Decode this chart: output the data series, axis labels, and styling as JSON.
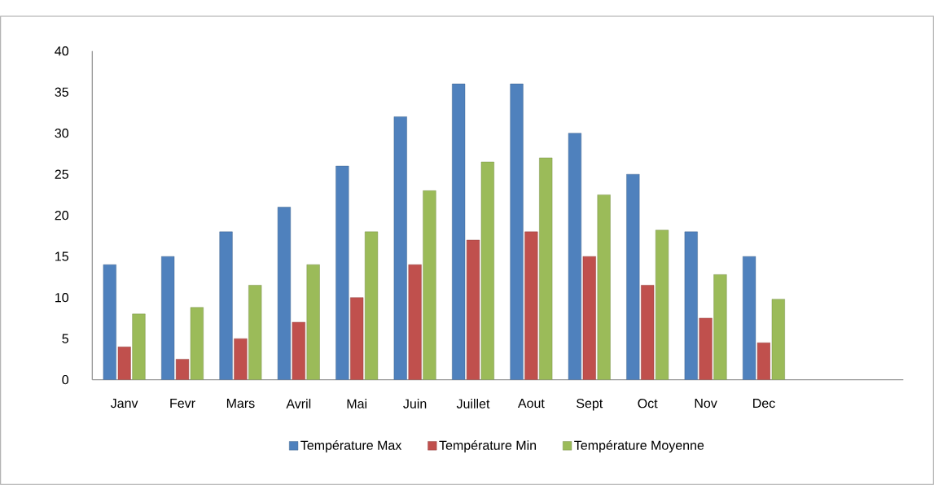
{
  "chart_data": {
    "type": "bar",
    "categories": [
      "Janv",
      "Fevr",
      "Mars",
      "Avril",
      "Mai",
      "Juin",
      "Juillet",
      "Aout",
      "Sept",
      "Oct",
      "Nov",
      "Dec"
    ],
    "series": [
      {
        "name": "Température Max",
        "color": "#4f81bd",
        "values": [
          14,
          15,
          18,
          21,
          26,
          32,
          36,
          36,
          30,
          25,
          18,
          15
        ]
      },
      {
        "name": "Température Min",
        "color": "#c0504d",
        "values": [
          4,
          2.5,
          5,
          7,
          10,
          14,
          17,
          18,
          15,
          11.5,
          7.5,
          4.5
        ]
      },
      {
        "name": "Température Moyenne",
        "color": "#9bbb59",
        "values": [
          8,
          8.8,
          11.5,
          14,
          18,
          23,
          26.5,
          27,
          22.5,
          18.2,
          12.8,
          9.8
        ]
      }
    ],
    "ylim": [
      0,
      40
    ],
    "yticks": [
      0,
      5,
      10,
      15,
      20,
      25,
      30,
      35,
      40
    ],
    "grid": false,
    "legend": "bottom"
  }
}
